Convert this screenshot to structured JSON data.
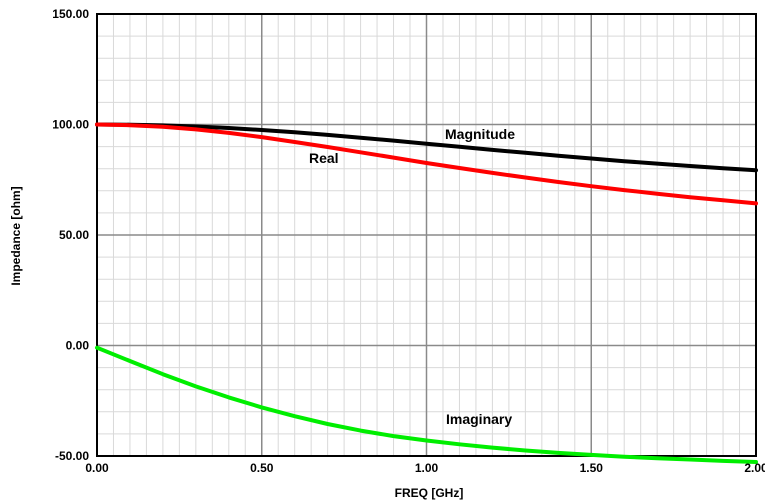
{
  "chart_data": {
    "type": "line",
    "xlabel": "FREQ [GHz]",
    "ylabel": "Impedance [ohm]",
    "xlim": [
      0,
      2
    ],
    "ylim": [
      -50,
      150
    ],
    "x_ticks": [
      "0.00",
      "0.50",
      "1.00",
      "1.50",
      "2.00"
    ],
    "y_ticks": [
      "150.00",
      "100.00",
      "50.00",
      "0.00",
      "-50.00"
    ],
    "grid": true,
    "x": [
      0,
      0.1,
      0.2,
      0.3,
      0.4,
      0.5,
      0.6,
      0.7,
      0.8,
      0.9,
      1.0,
      1.1,
      1.2,
      1.3,
      1.4,
      1.5,
      1.6,
      1.7,
      1.8,
      1.9,
      2.0
    ],
    "series": [
      {
        "name": "Magnitude",
        "color": "#000000",
        "values": [
          100,
          99.9,
          99.6,
          99.1,
          98.4,
          97.5,
          96.5,
          95.3,
          94.0,
          92.7,
          91.3,
          89.9,
          88.5,
          87.2,
          85.9,
          84.6,
          83.4,
          82.3,
          81.2,
          80.2,
          79.3
        ]
      },
      {
        "name": "Real",
        "color": "#ff0000",
        "values": [
          100,
          99.7,
          99.0,
          97.8,
          96.2,
          94.3,
          92.1,
          89.8,
          87.4,
          85.0,
          82.6,
          80.3,
          78.1,
          76.0,
          74.0,
          72.1,
          70.3,
          68.7,
          67.1,
          65.7,
          64.3
        ]
      },
      {
        "name": "Imaginary",
        "color": "#00ee00",
        "values": [
          -1,
          -7,
          -13,
          -18.5,
          -23.5,
          -28,
          -32,
          -35.5,
          -38.5,
          -41,
          -43,
          -44.7,
          -46.2,
          -47.5,
          -48.6,
          -49.5,
          -50.3,
          -51.0,
          -51.6,
          -52.2,
          -52.7
        ]
      }
    ]
  }
}
